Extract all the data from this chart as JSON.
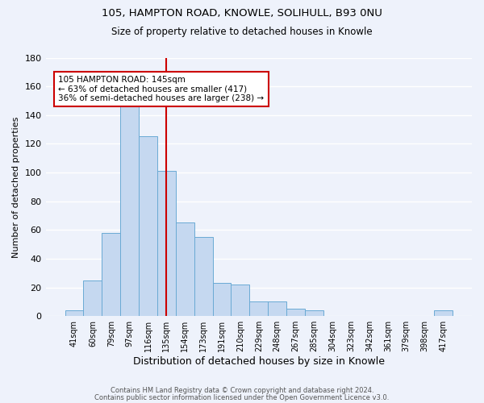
{
  "title1": "105, HAMPTON ROAD, KNOWLE, SOLIHULL, B93 0NU",
  "title2": "Size of property relative to detached houses in Knowle",
  "xlabel": "Distribution of detached houses by size in Knowle",
  "ylabel": "Number of detached properties",
  "bar_labels": [
    "41sqm",
    "60sqm",
    "79sqm",
    "97sqm",
    "116sqm",
    "135sqm",
    "154sqm",
    "173sqm",
    "191sqm",
    "210sqm",
    "229sqm",
    "248sqm",
    "267sqm",
    "285sqm",
    "304sqm",
    "323sqm",
    "342sqm",
    "361sqm",
    "379sqm",
    "398sqm",
    "417sqm"
  ],
  "bar_values": [
    4,
    25,
    58,
    148,
    125,
    101,
    65,
    55,
    23,
    22,
    10,
    10,
    5,
    4,
    0,
    0,
    0,
    0,
    0,
    0,
    4
  ],
  "bar_color": "#c5d8f0",
  "bar_edge_color": "#6aaad4",
  "vline_x": 5.5,
  "vline_color": "#cc0000",
  "annotation_title": "105 HAMPTON ROAD: 145sqm",
  "annotation_line1": "← 63% of detached houses are smaller (417)",
  "annotation_line2": "36% of semi-detached houses are larger (238) →",
  "annotation_box_color": "#ffffff",
  "annotation_box_edge": "#cc0000",
  "footer1": "Contains HM Land Registry data © Crown copyright and database right 2024.",
  "footer2": "Contains public sector information licensed under the Open Government Licence v3.0.",
  "ylim": [
    0,
    180
  ],
  "yticks": [
    0,
    20,
    40,
    60,
    80,
    100,
    120,
    140,
    160,
    180
  ],
  "bg_color": "#eef2fb",
  "grid_color": "#ffffff"
}
